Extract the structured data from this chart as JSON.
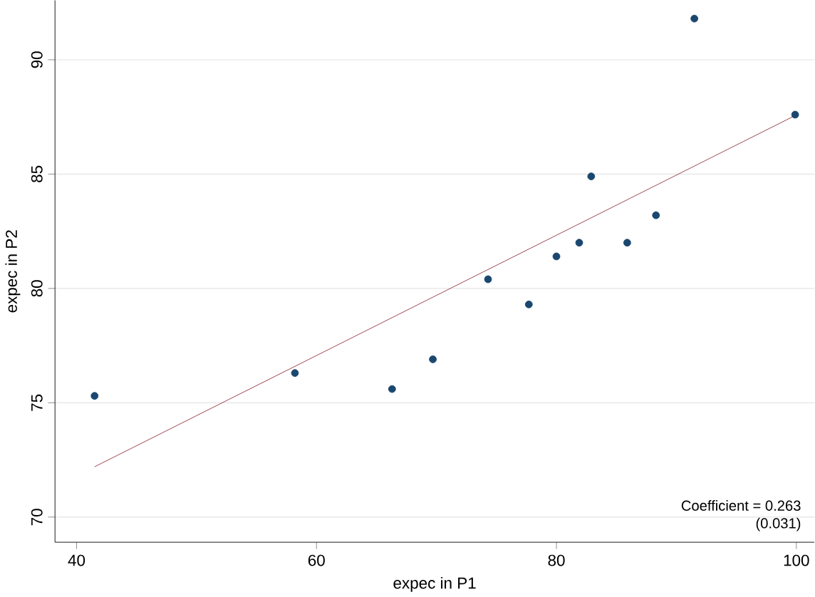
{
  "chart_data": {
    "type": "scatter",
    "xlabel": "expec in P1",
    "ylabel": "expec in P2",
    "xlim": [
      38.2,
      101.5
    ],
    "ylim": [
      68.9,
      92.6
    ],
    "xticks": [
      40,
      60,
      80,
      100
    ],
    "yticks": [
      70,
      75,
      80,
      85,
      90
    ],
    "grid": "y",
    "marker": "circle",
    "series": [
      {
        "type": "scatter",
        "color": "#1a476f",
        "x": [
          41.5,
          58.2,
          66.3,
          69.7,
          74.3,
          77.7,
          80.0,
          81.9,
          82.9,
          85.9,
          88.3,
          91.5,
          99.9
        ],
        "values": [
          75.3,
          76.3,
          75.6,
          76.9,
          80.4,
          79.3,
          81.4,
          82.0,
          84.9,
          82.0,
          83.2,
          91.8,
          87.6
        ]
      },
      {
        "type": "line",
        "marker": "none",
        "color": "#90353b",
        "x": [
          41.5,
          99.9
        ],
        "values": [
          72.2,
          87.56
        ]
      }
    ],
    "annotations": [
      "Coefficient = 0.263",
      "(0.031)"
    ]
  }
}
